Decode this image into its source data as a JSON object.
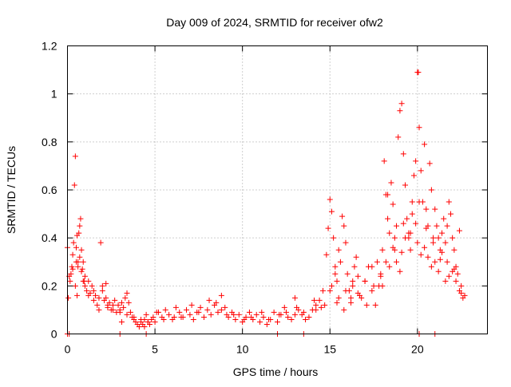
{
  "chart_data": {
    "type": "scatter",
    "title": "Day 009 of 2024, SRMTID for receiver ofw2",
    "xlabel": "GPS time / hours",
    "ylabel": "SRMTID / TECUs",
    "xlim": [
      0,
      24
    ],
    "ylim": [
      0,
      1.2
    ],
    "x_ticks": [
      0,
      5,
      10,
      15,
      20
    ],
    "x_tick_labels": [
      "0",
      "5",
      "10",
      "15",
      "20"
    ],
    "y_ticks": [
      0,
      0.2,
      0.4,
      0.6,
      0.8,
      1.0,
      1.2
    ],
    "y_tick_labels": [
      "0",
      "0.2",
      "0.4",
      "0.6",
      "0.8",
      "1",
      "1.2"
    ],
    "grid": true,
    "marker": "plus",
    "color": "#ff0000",
    "series": [
      {
        "name": "SRMTID",
        "x": [
          0.0,
          0.05,
          0.1,
          0.15,
          0.2,
          0.25,
          0.3,
          0.35,
          0.4,
          0.45,
          0.5,
          0.55,
          0.6,
          0.65,
          0.7,
          0.75,
          0.8,
          0.85,
          0.9,
          0.95,
          1.0,
          1.1,
          1.2,
          1.3,
          1.4,
          1.5,
          1.6,
          1.7,
          1.8,
          1.9,
          2.0,
          2.1,
          2.2,
          2.3,
          2.4,
          2.5,
          2.6,
          2.7,
          2.8,
          2.9,
          3.0,
          3.1,
          3.2,
          3.3,
          3.4,
          3.5,
          3.6,
          3.7,
          3.8,
          3.9,
          4.0,
          4.1,
          4.2,
          4.3,
          4.4,
          4.5,
          4.6,
          4.7,
          4.8,
          4.9,
          5.0,
          5.2,
          5.4,
          5.6,
          5.8,
          6.0,
          6.2,
          6.4,
          6.6,
          6.8,
          7.0,
          7.2,
          7.4,
          7.6,
          7.8,
          8.0,
          8.2,
          8.4,
          8.6,
          8.8,
          9.0,
          9.2,
          9.4,
          9.6,
          9.8,
          10.0,
          10.2,
          10.4,
          10.6,
          10.8,
          11.0,
          11.2,
          11.4,
          11.6,
          11.8,
          12.0,
          12.2,
          12.4,
          12.6,
          12.8,
          13.0,
          13.2,
          13.4,
          13.6,
          13.8,
          14.0,
          14.2,
          14.4,
          14.6,
          14.8,
          14.9,
          15.0,
          15.1,
          15.2,
          15.3,
          15.4,
          15.5,
          15.6,
          15.7,
          15.8,
          15.9,
          16.0,
          16.1,
          16.2,
          16.3,
          16.4,
          16.5,
          16.6,
          16.8,
          17.0,
          17.2,
          17.4,
          17.6,
          17.8,
          17.9,
          18.0,
          18.1,
          18.2,
          18.3,
          18.4,
          18.5,
          18.6,
          18.7,
          18.8,
          18.9,
          19.0,
          19.1,
          19.2,
          19.3,
          19.4,
          19.5,
          19.6,
          19.7,
          19.8,
          19.9,
          20.0,
          20.05,
          20.1,
          20.2,
          20.3,
          20.4,
          20.5,
          20.6,
          20.7,
          20.8,
          20.9,
          21.0,
          21.1,
          21.2,
          21.3,
          21.4,
          21.5,
          21.6,
          21.7,
          21.8,
          21.9,
          22.0,
          22.1,
          22.2,
          22.3,
          22.4,
          22.5,
          22.6,
          22.7,
          0.3,
          0.5,
          0.6,
          0.7,
          0.8,
          1.0,
          1.2,
          1.5,
          2.0,
          2.3,
          2.6,
          3.0,
          3.4,
          3.8,
          4.2,
          4.6,
          5.5,
          6.5,
          7.5,
          8.5,
          8.8,
          9.5,
          10.5,
          11.5,
          12.5,
          13.0,
          13.5,
          14.2,
          14.7,
          15.1,
          15.3,
          15.5,
          15.9,
          16.3,
          16.7,
          17.1,
          17.5,
          17.9,
          18.2,
          18.4,
          18.6,
          18.8,
          19.0,
          19.1,
          19.3,
          19.5,
          19.7,
          19.9,
          20.0,
          20.2,
          20.4,
          20.6,
          20.8,
          21.0,
          21.2,
          21.4,
          21.6,
          21.8,
          22.0,
          22.2,
          22.4,
          0.45,
          0.55,
          0.9,
          1.8,
          2.2,
          3.1,
          4.4,
          5.1,
          6.1,
          7.1,
          8.1,
          9.1,
          10.1,
          11.1,
          12.1,
          13.1,
          14.1,
          14.5,
          15.0,
          15.4,
          15.8,
          16.2,
          16.6,
          17.0,
          17.4,
          17.7,
          18.0,
          18.3,
          18.7,
          19.2,
          19.6,
          20.1,
          20.5,
          20.9,
          21.3,
          21.7,
          22.1,
          22.5,
          0.0,
          0.1,
          3.0,
          4.5,
          12.0,
          13.5,
          20.1,
          21.0
        ],
        "y": [
          0.36,
          0.15,
          0.24,
          0.22,
          0.25,
          0.28,
          0.33,
          0.38,
          0.62,
          0.74,
          0.36,
          0.41,
          0.3,
          0.42,
          0.45,
          0.48,
          0.35,
          0.27,
          0.3,
          0.22,
          0.2,
          0.18,
          0.16,
          0.17,
          0.2,
          0.14,
          0.16,
          0.12,
          0.15,
          0.38,
          0.18,
          0.14,
          0.21,
          0.11,
          0.13,
          0.1,
          0.12,
          0.14,
          0.09,
          0.12,
          0.1,
          0.13,
          0.11,
          0.15,
          0.17,
          0.13,
          0.09,
          0.07,
          0.06,
          0.05,
          0.04,
          0.03,
          0.05,
          0.04,
          0.06,
          0.08,
          0.05,
          0.04,
          0.06,
          0.07,
          0.05,
          0.09,
          0.07,
          0.1,
          0.08,
          0.06,
          0.11,
          0.09,
          0.07,
          0.1,
          0.08,
          0.06,
          0.09,
          0.11,
          0.07,
          0.1,
          0.08,
          0.12,
          0.09,
          0.16,
          0.11,
          0.07,
          0.09,
          0.06,
          0.08,
          0.05,
          0.07,
          0.09,
          0.06,
          0.08,
          0.05,
          0.07,
          0.04,
          0.06,
          0.09,
          0.05,
          0.08,
          0.11,
          0.07,
          0.06,
          0.15,
          0.1,
          0.08,
          0.06,
          0.07,
          0.1,
          0.12,
          0.14,
          0.18,
          0.33,
          0.44,
          0.56,
          0.51,
          0.4,
          0.28,
          0.22,
          0.35,
          0.3,
          0.49,
          0.45,
          0.38,
          0.25,
          0.18,
          0.13,
          0.2,
          0.28,
          0.32,
          0.24,
          0.15,
          0.22,
          0.28,
          0.18,
          0.12,
          0.2,
          0.25,
          0.35,
          0.72,
          0.58,
          0.48,
          0.42,
          0.63,
          0.54,
          0.35,
          0.45,
          0.82,
          0.93,
          0.96,
          0.75,
          0.62,
          0.48,
          0.4,
          0.35,
          0.55,
          0.66,
          0.72,
          1.09,
          1.09,
          0.86,
          0.68,
          0.55,
          0.79,
          0.52,
          0.45,
          0.71,
          0.6,
          0.38,
          0.52,
          0.45,
          0.4,
          0.35,
          0.42,
          0.48,
          0.38,
          0.3,
          0.55,
          0.5,
          0.4,
          0.35,
          0.28,
          0.25,
          0.18,
          0.2,
          0.15,
          0.16,
          0.27,
          0.3,
          0.28,
          0.32,
          0.26,
          0.24,
          0.22,
          0.18,
          0.2,
          0.12,
          0.1,
          0.09,
          0.08,
          0.07,
          0.06,
          0.05,
          0.06,
          0.07,
          0.09,
          0.13,
          0.1,
          0.08,
          0.07,
          0.06,
          0.09,
          0.08,
          0.09,
          0.1,
          0.12,
          0.2,
          0.25,
          0.15,
          0.18,
          0.22,
          0.16,
          0.12,
          0.2,
          0.24,
          0.3,
          0.28,
          0.36,
          0.3,
          0.26,
          0.34,
          0.4,
          0.42,
          0.5,
          0.46,
          0.38,
          0.33,
          0.36,
          0.32,
          0.28,
          0.3,
          0.26,
          0.34,
          0.22,
          0.24,
          0.26,
          0.22,
          0.43,
          0.2,
          0.16,
          0.22,
          0.1,
          0.15,
          0.05,
          0.03,
          0.09,
          0.07,
          0.12,
          0.14,
          0.08,
          0.06,
          0.09,
          0.08,
          0.11,
          0.14,
          0.11,
          0.18,
          0.13,
          0.1,
          0.15,
          0.17,
          0.22,
          0.28,
          0.3,
          0.2,
          0.58,
          0.4,
          0.46,
          0.42,
          0.55,
          0.44,
          0.4,
          0.31,
          0.45,
          0.27,
          0.17,
          0.0,
          0.0,
          0.0,
          0.0,
          0.0,
          0.0,
          0.0,
          0.0
        ]
      }
    ]
  }
}
